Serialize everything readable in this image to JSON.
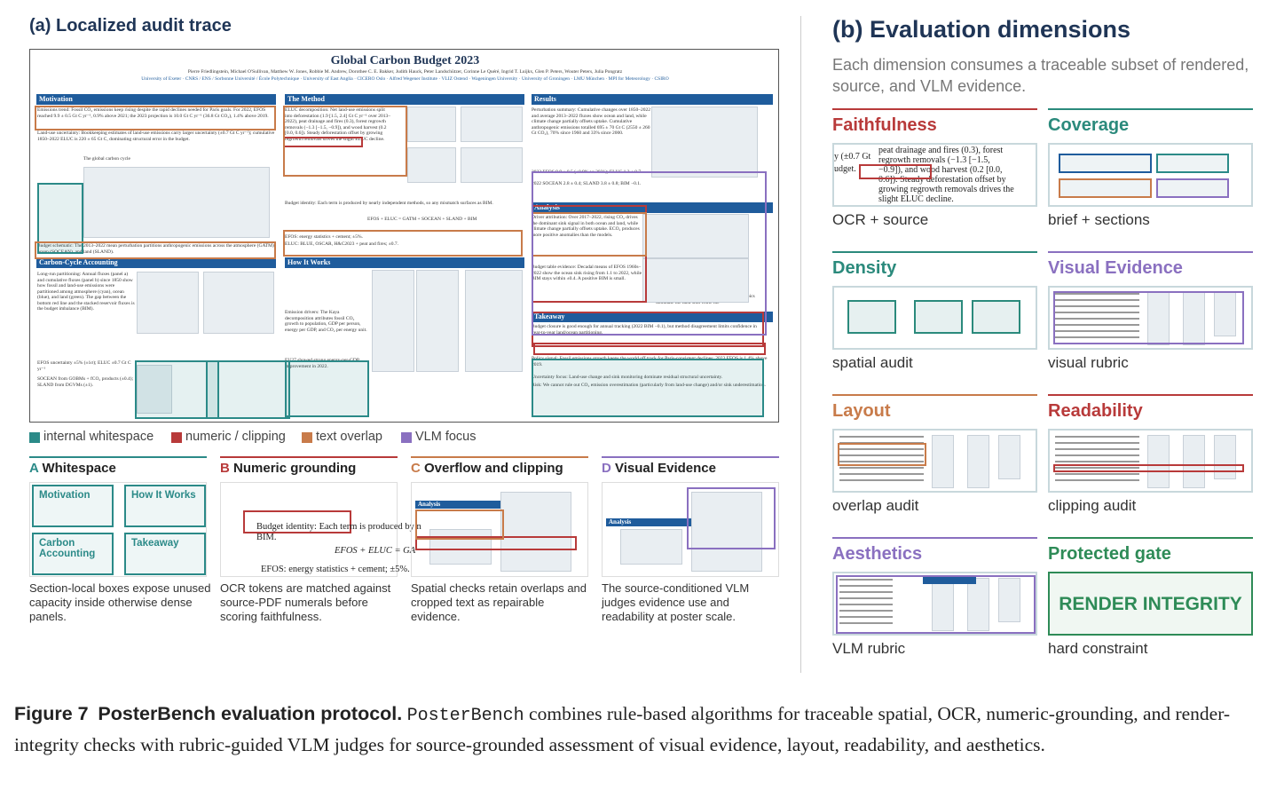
{
  "panel_a": {
    "title": "(a) Localized audit trace",
    "poster": {
      "title": "Global Carbon Budget 2023",
      "authors": "Pierre Friedlingstein, Michael O'Sullivan, Matthew W. Jones, Robbie M. Andrew, Dorothee C. E. Bakker, Judith Hauck, Peter Landschützer, Corinne Le Quéré, Ingrid T. Luijkx, Glen P. Peters, Wouter Peters, Julia Pongratz",
      "affiliations": "University of Exeter · CNRS / ENS / Sorbonne Université / École Polytechnique · University of East Anglia · CICERO Oslo · Alfred Wegener Institute · VLIZ Ostend · Wageningen University · University of Groningen · LMU München · MPI for Meteorology · CSIRO",
      "sections": [
        "Motivation",
        "The Method",
        "Results",
        "Carbon-Cycle Accounting",
        "How It Works",
        "Analysis",
        "Takeaway"
      ],
      "snippets": [
        "Emissions trend: Fossil CO₂ emissions keep rising despite the rapid declines needed for Paris goals. For 2022, EFOS reached 9.9 ± 0.5 Gt C yr⁻¹, 0.9% above 2021; the 2023 projection is 10.0 Gt C yr⁻¹ (36.8 Gt CO₂), 1.4% above 2019.",
        "Land-use uncertainty: Bookkeeping estimates of land-use emissions carry larger uncertainty (±0.7 Gt C yr⁻¹); cumulative 1850–2022 ELUC is 220 ± 65 Gt C, dominating structural error in the budget.",
        "The global carbon cycle",
        "ELUC decomposition: Net land-use emissions split into deforestation (1.9 [1.5, 2.4] Gt C yr⁻¹ over 2013–2022), peat drainage and fires (0.3), forest regrowth removals (−1.3 [−1.5, −0.9]), and wood harvest (0.2 [0.0, 0.6]). Steady deforestation offset by growing regrowth removals drives the slight ELUC decline.",
        "Budget identity: Each term is produced by nearly independent methods, so any mismatch surfaces as BIM.",
        "EFOS + ELUC = GATM + SOCEAN + SLAND + BIM",
        "EFOS: energy statistics + cement; ±5%.",
        "ELUC: BLUE, OSCAR, H&C2023 + peat and fires; ±0.7.",
        "Perturbation summary: Cumulative changes over 1850–2022 and average 2013–2022 fluxes show ocean and land, while climate change partially offsets uptake. Cumulative anthropogenic emissions totalled 695 ± 70 Gt C (2550 ± 260 Gt CO₂), 70% since 1960 and 33% since 2000.",
        "2022 EFOS 9.9 ± 0.5 (+0.9% vs 2021); ELUC 1.2 ± 0.7.",
        "2022 SOCEAN 2.8 ± 0.4; SLAND 3.8 ± 0.8; BIM −0.1.",
        "Driver attribution: Over 2017–2022, rising CO₂ drives the dominant sink signal in both ocean and land, while climate change partially offsets uptake. ECO₂ produces more positive anomalies than the models.",
        "Budget table evidence: Decadal means of EFOS 1960s–2022 show the ocean sink rising from 1.1 to 2022, while BIM stays within ±0.4. A positive BIM is small.",
        "Budget closure is good enough for annual tracking (2022 BIM −0.1), but method disagreement limits confidence in year-to-year land/ocean partitioning.",
        "Policy signal: Fossil emissions growth keeps the world off track for Paris-consistent declines; 2023 EFOS is 1.4% above 2019.",
        "Uncertainty focus: Land-use change and sink monitoring dominate residual structural uncertainty.",
        "Risk: We cannot rule out CO₂ emission overestimation (particularly from land-use change) and/or sink underestimation.",
        "Budget schematic: The 2013–2022 mean perturbation partitions anthropogenic emissions across the atmosphere (GATM), ocean (SOCEAN), and land (SLAND).",
        "Long-run partitioning: Annual fluxes (panel a) and cumulative fluxes (panel b) since 1850 show how fossil and land-use emissions were partitioned among atmosphere (cyan), ocean (blue), and land (green). The gap between the bottom red line and the stacked reservoir fluxes is the budget imbalance (BIM).",
        "EFOS uncertainty ±5% (±1σ); ELUC ±0.7 Gt C yr⁻¹",
        "SOCEAN from GOBMs + fCO₂ products (±0.4); SLAND from DGVMs (±1).",
        "Emission drivers: The Kaya decomposition attributes fossil CO₂ growth to population, GDP per person, energy per GDP, and CO₂ per energy unit.",
        "EU27 showed strong energy-per-GDP improvement in 2022.",
        "Latitudinal partitioning: The northern extra-tropics dominate the land sink while the"
      ]
    },
    "legend": [
      {
        "label": "internal whitespace",
        "color": "#2b8a88"
      },
      {
        "label": "numeric / clipping",
        "color": "#b83a3a"
      },
      {
        "label": "text overlap",
        "color": "#c87b4a"
      },
      {
        "label": "VLM focus",
        "color": "#8a70c0"
      }
    ],
    "subpanels": [
      {
        "letter": "A",
        "title": "Whitespace",
        "color": "#2b8a88",
        "caption": "Section-local boxes expose unused capacity inside otherwise dense panels.",
        "labels": [
          "Motivation",
          "How It Works",
          "Carbon Accounting",
          "Takeaway"
        ]
      },
      {
        "letter": "B",
        "title": "Numeric grounding",
        "color": "#b83a3a",
        "caption": "OCR tokens are matched against source-PDF numerals before scoring faithfulness.",
        "labels": [
          "Budget identity: Each term is produced by n",
          "BIM.",
          "EFOS + ELUC = GA",
          "EFOS: energy statistics + cement; ±5%."
        ]
      },
      {
        "letter": "C",
        "title": "Overflow and clipping",
        "color": "#c87b4a",
        "caption": "Spatial checks retain overlaps and cropped text as repairable evidence.",
        "labels": [
          "Analysis"
        ]
      },
      {
        "letter": "D",
        "title": "Visual Evidence",
        "color": "#8a70c0",
        "caption": "The source-conditioned VLM judges evidence use and readability at poster scale.",
        "labels": [
          "Analysis"
        ]
      }
    ]
  },
  "panel_b": {
    "title": "(b) Evaluation dimensions",
    "subtitle": "Each dimension consumes a traceable subset of rendered, source, and VLM evidence.",
    "dimensions": [
      {
        "name": "Faithfulness",
        "color": "#b83a3a",
        "caption": "OCR + source"
      },
      {
        "name": "Coverage",
        "color": "#2b8a7c",
        "caption": "brief + sections"
      },
      {
        "name": "Density",
        "color": "#2b8a7c",
        "caption": "spatial audit"
      },
      {
        "name": "Visual Evidence",
        "color": "#8a70c0",
        "caption": "visual rubric"
      },
      {
        "name": "Layout",
        "color": "#c87b4a",
        "caption": "overlap audit"
      },
      {
        "name": "Readability",
        "color": "#b83a3a",
        "caption": "clipping audit"
      },
      {
        "name": "Aesthetics",
        "color": "#8a70c0",
        "caption": "VLM rubric"
      },
      {
        "name": "Protected gate",
        "color": "#2e8b57",
        "caption": "hard constraint"
      }
    ],
    "faithfulness_snippet": [
      "y (±0.7 Gt",
      "udget.",
      "peat drainage and fires (0.3), forest",
      "regrowth removals (−1.3 [−1.5,",
      "−0.9]), and wood harvest (0.2 [0.0,",
      "0.6]). Steady deforestation offset by",
      "growing regrowth removals drives the",
      "slight ELUC decline."
    ],
    "gate_label": "RENDER INTEGRITY"
  },
  "caption": {
    "label": "Figure 7",
    "title": "PosterBench evaluation protocol.",
    "name": "PosterBench",
    "text": "combines rule-based algorithms for traceable spatial, OCR, numeric-grounding, and render-integrity checks with rubric-guided VLM judges for source-grounded assessment of visual evidence, layout, readability, and aesthetics."
  }
}
